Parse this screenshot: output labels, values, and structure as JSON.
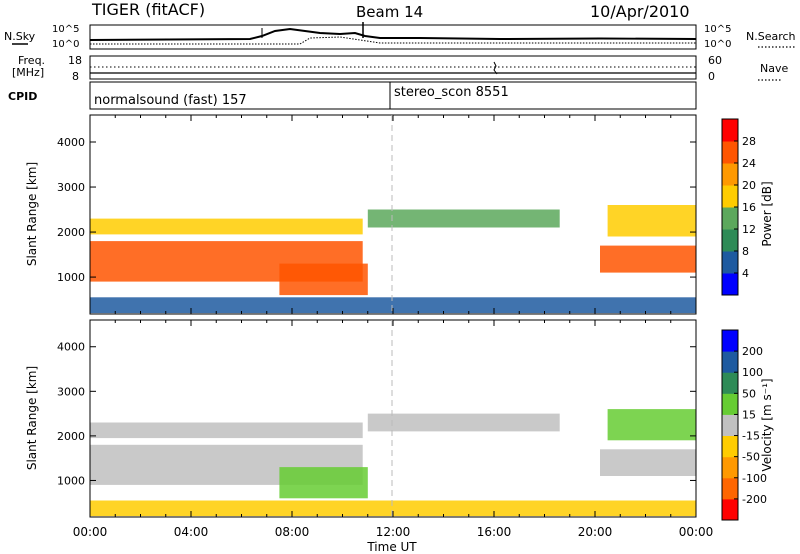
{
  "header": {
    "station": "TIGER (fitACF)",
    "beam": "Beam 14",
    "date": "10/Apr/2010"
  },
  "top_panels": {
    "nsky_label": "N.Sky",
    "nsky_ticks": [
      "10^5",
      "10^0"
    ],
    "nsearch_label": "N.Search",
    "freq_label_line1": "Freq.",
    "freq_label_line2": "[MHz]",
    "freq_ticks": [
      "18",
      "8"
    ],
    "nave_label": "Nave",
    "nave_ticks": [
      "60",
      "0"
    ],
    "cpid_label": "CPID",
    "cpid_modes": [
      {
        "label": "normalsound (fast) 157",
        "start": "00:00"
      },
      {
        "label": "stereo_scon 8551",
        "start": "12:00"
      }
    ]
  },
  "chart_data": [
    {
      "type": "heatmap",
      "title": "",
      "xlabel": "Time UT",
      "ylabel": "Slant Range [km]",
      "x_ticks": [
        "00:00",
        "04:00",
        "08:00",
        "12:00",
        "16:00",
        "20:00",
        "00:00"
      ],
      "x_range_hours": [
        0,
        24
      ],
      "y_ticks": [
        1000,
        2000,
        3000,
        4000
      ],
      "ylim": [
        180,
        4600
      ],
      "colorbar": {
        "label": "Power [dB]",
        "ticks": [
          4,
          8,
          12,
          16,
          20,
          24,
          28
        ],
        "colors": [
          "#0000ff",
          "#1e5aa0",
          "#2e8b57",
          "#5ca85c",
          "#ffcc00",
          "#ff9900",
          "#ff5500",
          "#ff0000"
        ]
      },
      "echo_bands": [
        {
          "t_start": 0,
          "t_end": 10.8,
          "range_start": 900,
          "range_end": 1800,
          "level_db": 26
        },
        {
          "t_start": 0,
          "t_end": 10.8,
          "range_start": 1950,
          "range_end": 2300,
          "level_db": 16
        },
        {
          "t_start": 7.5,
          "t_end": 11,
          "range_start": 600,
          "range_end": 1300,
          "level_db": 24
        },
        {
          "t_start": 11,
          "t_end": 18.6,
          "range_start": 2100,
          "range_end": 2500,
          "level_db": 12
        },
        {
          "t_start": 20.2,
          "t_end": 24,
          "range_start": 1100,
          "range_end": 1700,
          "level_db": 26
        },
        {
          "t_start": 20.5,
          "t_end": 24,
          "range_start": 1900,
          "range_end": 2600,
          "level_db": 16
        },
        {
          "t_start": 0,
          "t_end": 24,
          "range_start": 200,
          "range_end": 550,
          "level_db": 6
        }
      ]
    },
    {
      "type": "heatmap",
      "title": "",
      "xlabel": "Time UT",
      "ylabel": "Slant Range [km]",
      "x_ticks": [
        "00:00",
        "04:00",
        "08:00",
        "12:00",
        "16:00",
        "20:00",
        "00:00"
      ],
      "x_range_hours": [
        0,
        24
      ],
      "y_ticks": [
        1000,
        2000,
        3000,
        4000
      ],
      "ylim": [
        180,
        4600
      ],
      "colorbar": {
        "label": "Velocity [m s⁻¹]",
        "ticks": [
          -200,
          -100,
          -50,
          -15,
          15,
          50,
          100,
          200
        ],
        "colors": [
          "#ff0000",
          "#ff6600",
          "#ff9900",
          "#ffcc00",
          "#c0c0c0",
          "#66cc33",
          "#2e8b57",
          "#1e5aa0",
          "#0000ff"
        ]
      },
      "echo_bands": [
        {
          "t_start": 0,
          "t_end": 10.8,
          "range_start": 900,
          "range_end": 1800,
          "velocity": 0
        },
        {
          "t_start": 0,
          "t_end": 10.8,
          "range_start": 1950,
          "range_end": 2300,
          "velocity": 0
        },
        {
          "t_start": 7.5,
          "t_end": 11,
          "range_start": 600,
          "range_end": 1300,
          "velocity": 40
        },
        {
          "t_start": 11,
          "t_end": 18.6,
          "range_start": 2100,
          "range_end": 2500,
          "velocity": 0
        },
        {
          "t_start": 20.2,
          "t_end": 24,
          "range_start": 1100,
          "range_end": 1700,
          "velocity": 0
        },
        {
          "t_start": 20.5,
          "t_end": 24,
          "range_start": 1900,
          "range_end": 2600,
          "velocity": 40
        },
        {
          "t_start": 0,
          "t_end": 24,
          "range_start": 200,
          "range_end": 550,
          "velocity": -30
        }
      ]
    }
  ]
}
